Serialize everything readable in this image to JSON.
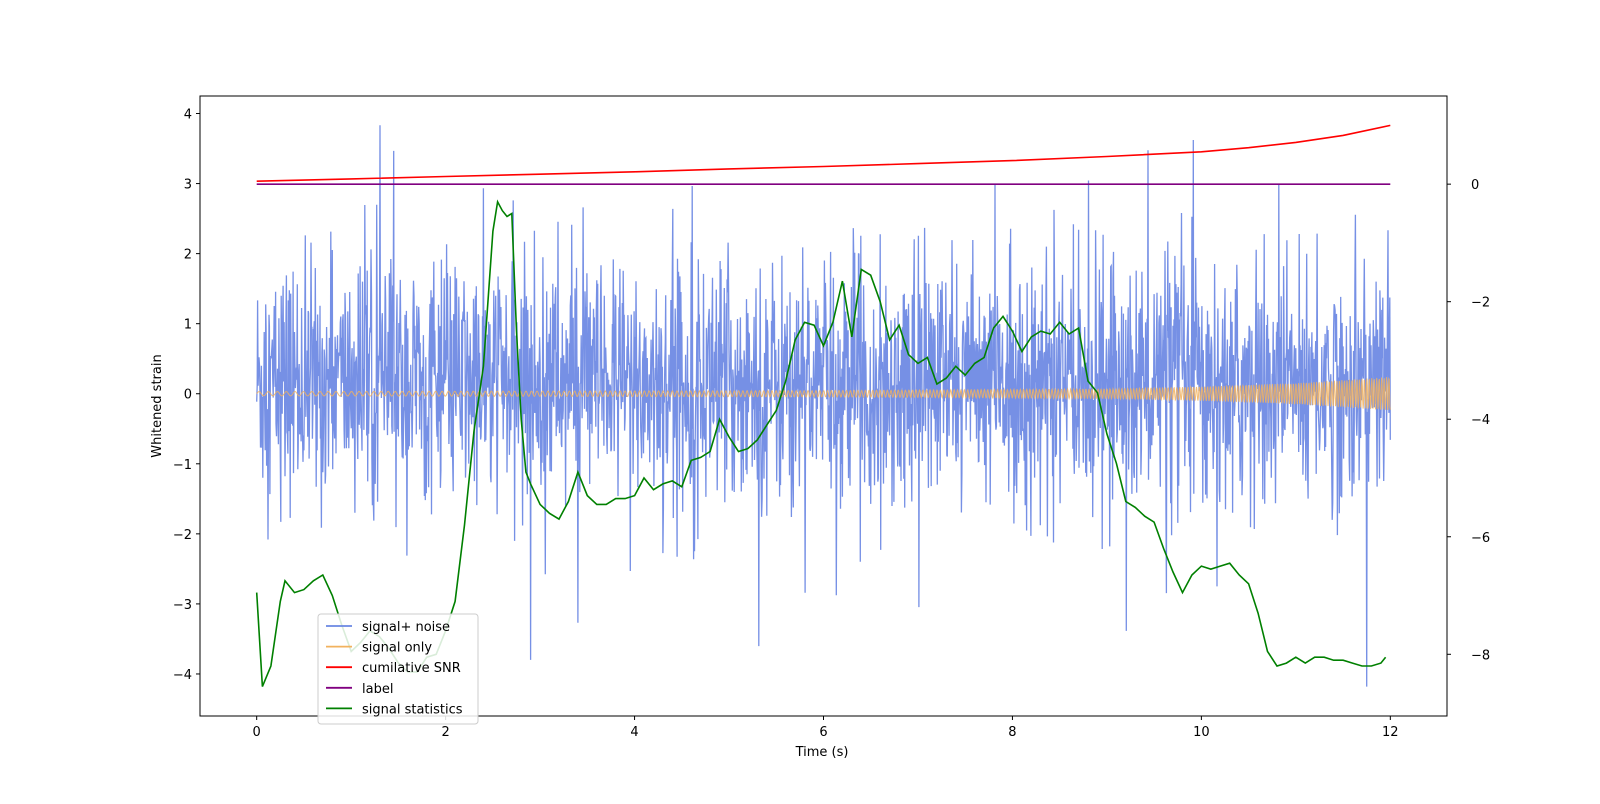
{
  "chart_data": {
    "type": "line",
    "xlabel": "Time (s)",
    "ylabel": "Whitened strain",
    "xlim": [
      -0.6,
      12.6
    ],
    "ylim": [
      -4.6,
      4.25
    ],
    "y2lim": [
      -9.05,
      1.5
    ],
    "xticks": [
      0,
      2,
      4,
      6,
      8,
      10,
      12
    ],
    "yticks": [
      -4,
      -3,
      -2,
      -1,
      0,
      1,
      2,
      3,
      4
    ],
    "y2ticks": [
      -8,
      -6,
      -4,
      -2,
      0
    ],
    "legend_location": "lower-left",
    "grid": false,
    "noise": {
      "description": "dense noisy trace spanning 0-12 s",
      "x_range": [
        0,
        12
      ],
      "typical_range": [
        -2.0,
        2.4
      ],
      "peak_max": 3.85,
      "peak_min": -4.18
    },
    "series": [
      {
        "name": "signal+ noise",
        "color": "#6a87e3",
        "axis": "left",
        "style": "noise"
      },
      {
        "name": "signal only",
        "color": "#f2b25e",
        "axis": "left",
        "style": "chirp",
        "x_range": [
          0,
          12
        ],
        "envelope": [
          [
            0,
            0.03
          ],
          [
            6,
            0.045
          ],
          [
            9,
            0.07
          ],
          [
            10,
            0.1
          ],
          [
            11,
            0.15
          ],
          [
            12,
            0.24
          ]
        ]
      },
      {
        "name": "cumilative SNR",
        "color": "#ff0000",
        "axis": "right",
        "x": [
          0,
          1,
          2,
          3,
          4,
          5,
          6,
          7,
          8,
          9,
          10,
          10.5,
          11,
          11.5,
          12
        ],
        "y": [
          0.05,
          0.09,
          0.13,
          0.17,
          0.21,
          0.26,
          0.3,
          0.35,
          0.4,
          0.47,
          0.55,
          0.62,
          0.71,
          0.83,
          1.0
        ]
      },
      {
        "name": "label",
        "color": "#800080",
        "axis": "right",
        "x": [
          0,
          12
        ],
        "y": [
          0,
          0
        ]
      },
      {
        "name": "signal statistics",
        "color": "#008000",
        "axis": "right",
        "x": [
          0,
          0.06,
          0.15,
          0.25,
          0.3,
          0.4,
          0.5,
          0.6,
          0.7,
          0.8,
          0.9,
          1.0,
          1.1,
          1.2,
          1.3,
          1.4,
          1.5,
          1.6,
          1.7,
          1.8,
          1.9,
          2.0,
          2.1,
          2.2,
          2.3,
          2.4,
          2.5,
          2.55,
          2.6,
          2.65,
          2.7,
          2.75,
          2.8,
          2.85,
          2.9,
          3.0,
          3.1,
          3.2,
          3.3,
          3.4,
          3.5,
          3.6,
          3.7,
          3.8,
          3.9,
          4.0,
          4.1,
          4.2,
          4.3,
          4.4,
          4.5,
          4.6,
          4.7,
          4.8,
          4.9,
          5.0,
          5.1,
          5.2,
          5.3,
          5.4,
          5.5,
          5.6,
          5.7,
          5.8,
          5.9,
          6.0,
          6.1,
          6.2,
          6.3,
          6.4,
          6.5,
          6.6,
          6.7,
          6.8,
          6.9,
          7.0,
          7.1,
          7.2,
          7.3,
          7.4,
          7.5,
          7.6,
          7.7,
          7.8,
          7.9,
          8.0,
          8.1,
          8.2,
          8.3,
          8.4,
          8.5,
          8.6,
          8.7,
          8.8,
          8.9,
          9.0,
          9.1,
          9.2,
          9.3,
          9.4,
          9.5,
          9.6,
          9.7,
          9.8,
          9.9,
          10.0,
          10.1,
          10.2,
          10.3,
          10.4,
          10.5,
          10.6,
          10.7,
          10.8,
          10.9,
          11.0,
          11.1,
          11.2,
          11.3,
          11.4,
          11.5,
          11.6,
          11.7,
          11.8,
          11.9,
          11.95
        ],
        "y": [
          -6.95,
          -8.55,
          -8.2,
          -7.1,
          -6.75,
          -6.95,
          -6.9,
          -6.75,
          -6.65,
          -7.0,
          -7.5,
          -7.95,
          -7.8,
          -7.6,
          -7.7,
          -7.9,
          -8.15,
          -8.3,
          -8.3,
          -8.05,
          -8.0,
          -7.6,
          -7.1,
          -5.8,
          -4.2,
          -3.1,
          -0.8,
          -0.3,
          -0.45,
          -0.55,
          -0.5,
          -2.5,
          -4.0,
          -4.9,
          -5.1,
          -5.45,
          -5.6,
          -5.7,
          -5.4,
          -4.9,
          -5.3,
          -5.45,
          -5.45,
          -5.35,
          -5.35,
          -5.3,
          -5.0,
          -5.2,
          -5.1,
          -5.05,
          -5.15,
          -4.7,
          -4.65,
          -4.55,
          -4.0,
          -4.3,
          -4.55,
          -4.5,
          -4.35,
          -4.1,
          -3.85,
          -3.35,
          -2.65,
          -2.35,
          -2.4,
          -2.75,
          -2.35,
          -1.65,
          -2.6,
          -1.45,
          -1.55,
          -2.0,
          -2.65,
          -2.4,
          -2.9,
          -3.05,
          -2.95,
          -3.4,
          -3.3,
          -3.1,
          -3.25,
          -3.05,
          -2.95,
          -2.45,
          -2.25,
          -2.5,
          -2.85,
          -2.6,
          -2.5,
          -2.55,
          -2.35,
          -2.55,
          -2.45,
          -3.35,
          -3.55,
          -4.25,
          -4.75,
          -5.4,
          -5.5,
          -5.65,
          -5.75,
          -6.2,
          -6.6,
          -6.95,
          -6.65,
          -6.5,
          -6.55,
          -6.5,
          -6.45,
          -6.65,
          -6.8,
          -7.3,
          -7.95,
          -8.2,
          -8.15,
          -8.05,
          -8.15,
          -8.05,
          -8.05,
          -8.1,
          -8.1,
          -8.15,
          -8.2,
          -8.2,
          -8.15,
          -8.05
        ]
      }
    ]
  }
}
